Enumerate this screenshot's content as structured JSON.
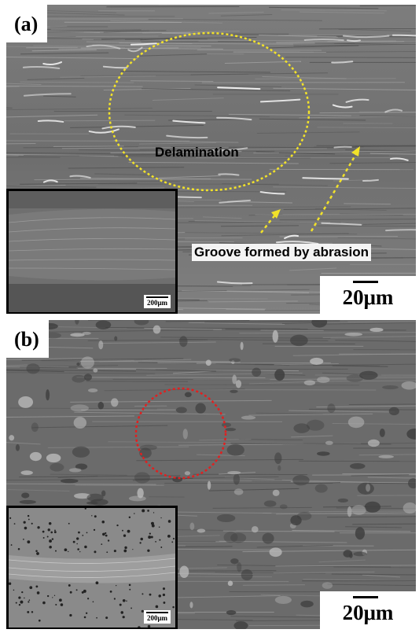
{
  "panel_a": {
    "label": "(a)",
    "annotation_delamination": "Delamination",
    "annotation_groove": "Groove formed by abrasion",
    "scale_bar": "20μm",
    "inset_scale_bar": "200μm"
  },
  "panel_b": {
    "label": "(b)",
    "scale_bar": "20μm",
    "inset_scale_bar": "200μm"
  },
  "colors": {
    "delamination_circle": "#f2e22a",
    "abrasion_arrows": "#f2e22a",
    "highlight_circle": "#e02020"
  }
}
